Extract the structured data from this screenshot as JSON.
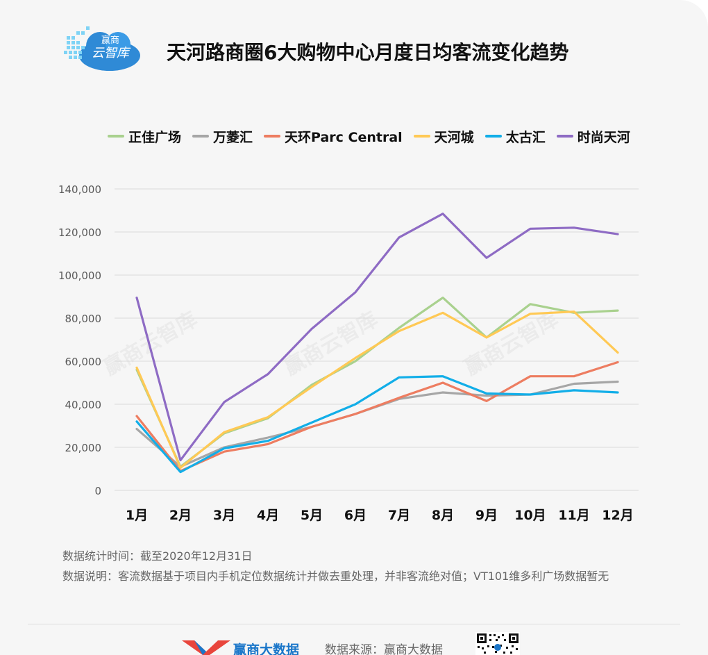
{
  "header": {
    "logo_line1": "赢商",
    "logo_line2": "云智库",
    "title": "天河路商圈6大购物中心月度日均客流变化趋势"
  },
  "watermark_text": "赢商云智库",
  "chart_data": {
    "type": "line",
    "title": "天河路商圈6大购物中心月度日均客流变化趋势",
    "categories": [
      "1月",
      "2月",
      "3月",
      "4月",
      "5月",
      "6月",
      "7月",
      "8月",
      "9月",
      "10月",
      "11月",
      "12月"
    ],
    "ylim": [
      0,
      140000
    ],
    "yticks": [
      0,
      20000,
      40000,
      60000,
      80000,
      100000,
      120000,
      140000
    ],
    "ytick_labels": [
      "0",
      "20,000",
      "40,000",
      "60,000",
      "80,000",
      "100,000",
      "120,000",
      "140,000"
    ],
    "grid": true,
    "legend_position": "top",
    "series": [
      {
        "name": "正佳广场",
        "color": "#a9d18e",
        "values": [
          56000,
          11000,
          26500,
          33500,
          49000,
          60000,
          75500,
          89500,
          71000,
          86500,
          82500,
          83500
        ]
      },
      {
        "name": "万菱汇",
        "color": "#a6a6a6",
        "values": [
          28500,
          11000,
          20000,
          24500,
          29500,
          35500,
          42500,
          45500,
          44000,
          44500,
          49500,
          50500
        ]
      },
      {
        "name": "天环Parc Central",
        "color": "#ed7d61",
        "values": [
          34500,
          9000,
          18000,
          21500,
          29500,
          35500,
          43000,
          50000,
          41500,
          53000,
          53000,
          59500
        ]
      },
      {
        "name": "天河城",
        "color": "#ffc955",
        "values": [
          57000,
          10500,
          27000,
          34000,
          48000,
          61500,
          74000,
          82500,
          71000,
          82000,
          83000,
          64000
        ]
      },
      {
        "name": "太古汇",
        "color": "#12aee8",
        "values": [
          32000,
          8500,
          19500,
          23000,
          31500,
          40000,
          52500,
          53000,
          45000,
          44500,
          46500,
          45500
        ]
      },
      {
        "name": "时尚天河",
        "color": "#8e6bc4",
        "values": [
          89500,
          14000,
          41000,
          54000,
          75000,
          92000,
          117500,
          128500,
          108000,
          121500,
          122000,
          119000
        ]
      }
    ]
  },
  "notes": {
    "line1": "数据统计时间：截至2020年12月31日",
    "line2": "数据说明：客流数据基于项目内手机定位数据统计并做去重处理，并非客流绝对值；VT101维多利广场数据暂无"
  },
  "footer": {
    "brand": "赢商大数据",
    "source": "数据来源：赢商大数据"
  }
}
